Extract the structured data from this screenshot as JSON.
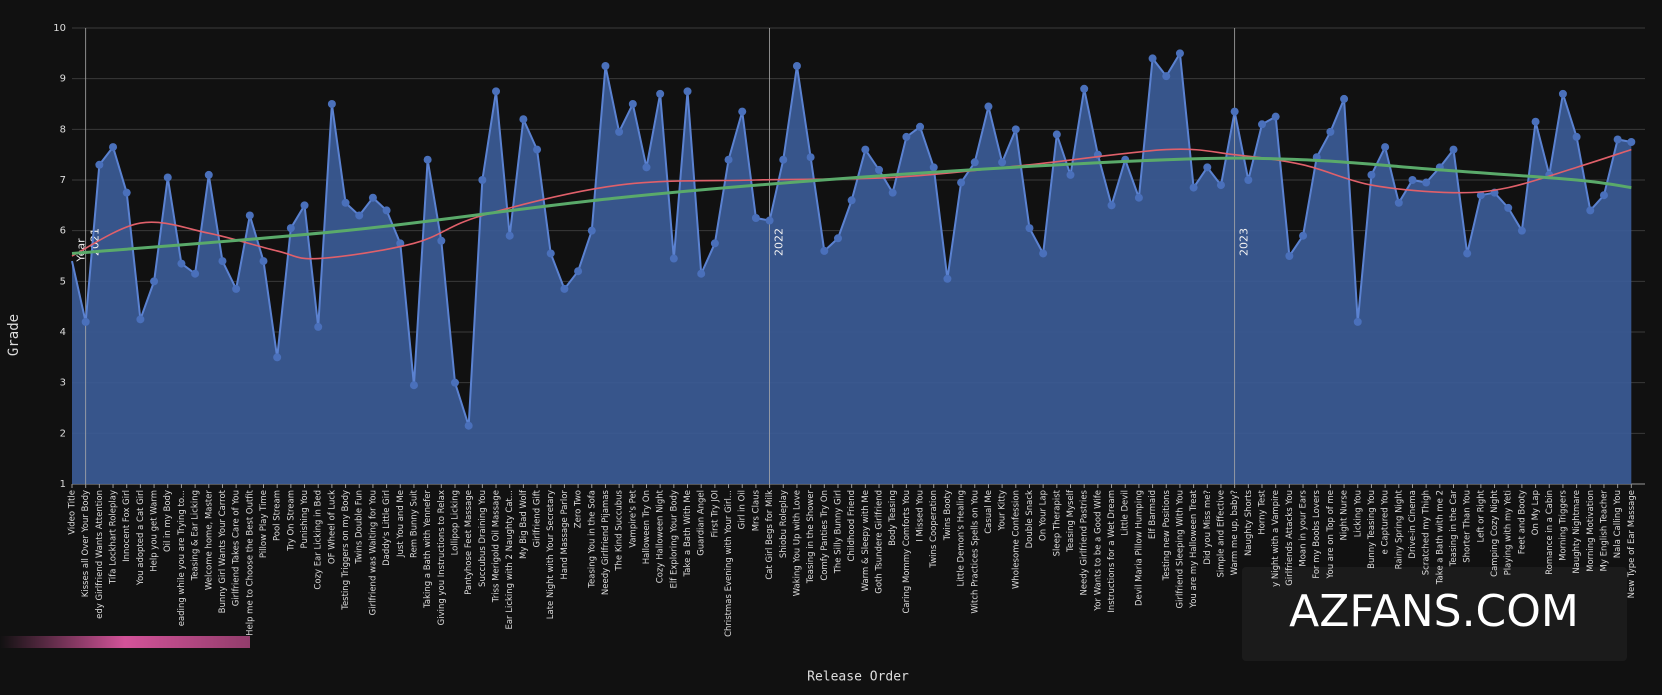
{
  "chart_data": {
    "type": "area",
    "x_label": "Release Order",
    "y_label": "Grade",
    "ylim": [
      1,
      10
    ],
    "yticks": [
      1,
      2,
      3,
      4,
      5,
      6,
      7,
      8,
      9,
      10
    ],
    "grid": true,
    "categories": [
      "Video Title",
      "Kisses all Over Your Body",
      "edy Girlfriend Wants Attention",
      "Tifa Lockhart Roleplay",
      "Innocent Fox Girl",
      "You adopted a Cat Girl",
      "Help you get Warm",
      "Oil in my Body",
      "eading while you are Trying to...",
      "Teasing & Ear Licking",
      "Welcome home, Master",
      "Bunny Girl Wants Your Carrot",
      "Girlfriend Takes Care of You",
      "Help me to Choose the Best Outfit",
      "Pillow Play Time",
      "Pool Stream",
      "Try On Stream",
      "Punishing You",
      "Cozy Ear Licking in Bed",
      "OF Wheel of Luck",
      "Testing Triggers on my Body",
      "Twins Double Fun",
      "Girlfriend was Waiting for You",
      "Daddy's Little Girl",
      "Just You and Me",
      "Rem Bunny Suit",
      "Taking a Bath with Yennefer",
      "Giving you Instructions to Relax",
      "Lollipop Licking",
      "Pantyhose Feet Massage",
      "Succubus Draining You",
      "Triss Merigold Oil Massage",
      "Ear Licking with 2 Naughty Cat...",
      "My Big Bad Wolf",
      "Girlfriend Gift",
      "Late Night with Your Secretary",
      "Hand Massage Parlor",
      "Zero Two",
      "Teasing You in the Sofa",
      "Needy Girlfriend Pijamas",
      "The Kind Succubus",
      "Vampire's Pet",
      "Halloween Try On",
      "Cozy Halloween Night",
      "Elf Exploring Your Body",
      "Take a Bath With Me",
      "Guardian Angel",
      "First Try JOI",
      "Christmas Evening with Your Girl...",
      "Girl in Oil",
      "Mrs Claus",
      "Cat Girl Begs for Milk",
      "Shiobu Roleplay",
      "Waking You Up with Love",
      "Teasing in the Shower",
      "Comfy Panties Try On",
      "The Silly Bunny Girl",
      "Childhood Friend",
      "Warm & Sleepy with Me",
      "Goth Tsundere Girlfriend",
      "Body Teasing",
      "Caring Mommy Comforts You",
      "I Missed You",
      "Twins Cooperation",
      "Twins Booty",
      "Little Demon's Healing",
      "Witch Practices Spells on You",
      "Casual Me",
      "Your Kitty",
      "Wholesome Confession",
      "Double Snack",
      "On Your Lap",
      "Sleep Therapist",
      "Teasing Myself",
      "Needy Girlfriend Pastries",
      "Yor Wants to be a Good Wife",
      "Instructions for a Wet Dream",
      "Little Devil",
      "Devil Maria Pillow Humping",
      "Elf Barmaid",
      "Testing new Positions",
      "Girlfriend Sleeping With You",
      "You are my Halloween Treat",
      "Did you Miss me?",
      "Simple and Effective",
      "Warm me up, baby?",
      "Naughty Shorts",
      "Horny Test",
      "y Night with a Vampire",
      "Girlfriends Attacks You",
      "Moan in your Ears",
      "For my Boobs Lovers",
      "You are on Top of me",
      "Night Nurse",
      "Licking You",
      "Bunny Teasing You",
      "e Captured You",
      "Rainy Spring Night",
      "Drive-in Cinema",
      "Scratched my Thigh",
      "Take a Bath with me 2",
      "Teasing in the Car",
      "Shorter Than You",
      "Left or Right",
      "Camping Cozy Night",
      "Playing with my Yeti",
      "Feet and Booty",
      "On My Lap",
      "Romance in a Cabin",
      "Morning Triggers",
      "Naughty Nightmare",
      "Morning Motivation",
      "My English Teacher",
      "Nala Calling You",
      "New Type of Ear Massage"
    ],
    "series": [
      {
        "name": "Grade",
        "color": "#5b82d1",
        "fill": "#3a5a92",
        "values": [
          5.4,
          4.2,
          7.3,
          7.65,
          6.75,
          4.25,
          5.0,
          7.05,
          5.35,
          5.15,
          7.1,
          5.4,
          4.85,
          6.3,
          5.4,
          3.5,
          6.05,
          6.5,
          4.1,
          8.5,
          6.55,
          6.3,
          6.65,
          6.4,
          5.75,
          2.95,
          7.4,
          5.8,
          3.0,
          2.15,
          7.0,
          8.75,
          5.9,
          8.2,
          7.6,
          5.55,
          4.85,
          5.2,
          6.0,
          9.25,
          7.95,
          8.5,
          7.25,
          8.7,
          5.45,
          8.75,
          5.15,
          5.75,
          7.4,
          8.35,
          6.25,
          6.2,
          7.4,
          9.25,
          7.45,
          5.6,
          5.85,
          6.6,
          7.6,
          7.2,
          6.75,
          7.85,
          8.05,
          7.25,
          5.05,
          6.95,
          7.35,
          8.45,
          7.35,
          8.0,
          6.05,
          5.55,
          7.9,
          7.1,
          8.8,
          7.5,
          6.5,
          7.4,
          6.65,
          9.4,
          9.05,
          9.5,
          6.85,
          7.25,
          6.9,
          8.35,
          7.0,
          8.1,
          8.25,
          5.5,
          5.9,
          7.45,
          7.95,
          8.6,
          4.2,
          7.1,
          7.65,
          6.55,
          7.0,
          6.95,
          7.25,
          7.6,
          5.55,
          6.7,
          6.75,
          6.45,
          6.0,
          8.15,
          7.1,
          8.7,
          7.85,
          6.4,
          6.7,
          7.8,
          7.75
        ]
      }
    ],
    "trends": [
      {
        "color": "#e0606a",
        "x": [
          0,
          5,
          10,
          15,
          18,
          25,
          30,
          40,
          50,
          60,
          70,
          80,
          85,
          90,
          95,
          101,
          105,
          110,
          114
        ],
        "values": [
          5.5,
          6.15,
          5.95,
          5.6,
          5.45,
          5.75,
          6.3,
          6.9,
          7.0,
          7.05,
          7.3,
          7.6,
          7.5,
          7.3,
          6.9,
          6.75,
          6.85,
          7.25,
          7.6
        ]
      },
      {
        "color": "#5aaa6a",
        "x": [
          0,
          20,
          40,
          60,
          80,
          90,
          100,
          110,
          114
        ],
        "values": [
          5.55,
          6.0,
          6.65,
          7.1,
          7.4,
          7.4,
          7.2,
          7.0,
          6.85
        ]
      }
    ],
    "year_title": "Year",
    "year_markers": [
      {
        "label": "2021",
        "category": "Kisses all Over Your Body"
      },
      {
        "label": "2022",
        "category": "Cat Girl Begs for Milk"
      },
      {
        "label": "2023",
        "category": "Warm me up, baby?"
      }
    ],
    "watermark": "AZFANS.COM"
  }
}
